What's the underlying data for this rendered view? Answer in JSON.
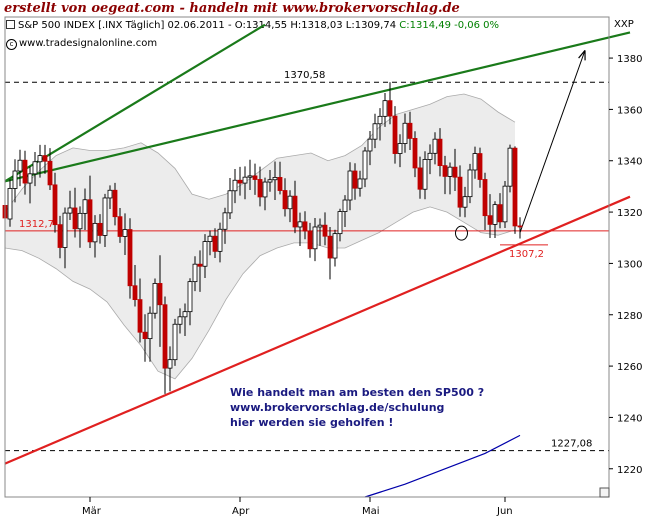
{
  "header": {
    "banner": "erstellt von oegeat.com - handeln mit www.brokervorschlag.de",
    "info": "S&P 500 INDEX [.INX Täglich] 02.06.2011 - O:1314,55 H:1318,03 L:1309,74",
    "info_close": "C:1314,49 -0,06 0%",
    "source": "www.tradesignalonline.com",
    "axis_code": "XXP"
  },
  "colors": {
    "up": "#ffffff",
    "down": "#c00000",
    "support": "#e02020",
    "resistance": "#1a7a1a",
    "bands": "#aaaaaa",
    "ma": "#0000aa",
    "annotation": "#1a1a80"
  },
  "chart_data": {
    "type": "candlestick",
    "title": "",
    "ylim": [
      1209,
      1396
    ],
    "grid": false,
    "y_ticks": [
      1220,
      1240,
      1260,
      1280,
      1300,
      1320,
      1340,
      1360,
      1380
    ],
    "x_ticks": [
      "Mär",
      "Apr",
      "Mai",
      "Jun"
    ],
    "levels": [
      {
        "label": "1370,58",
        "value": 1370.58,
        "style": "dashed"
      },
      {
        "label": "1227,08",
        "value": 1227.08,
        "style": "dashed"
      },
      {
        "label": "1312,7",
        "value": 1312.7,
        "style": "solid"
      },
      {
        "label": "1307,2",
        "value": 1307.2,
        "style": "solid"
      }
    ],
    "trendlines": [
      {
        "name": "support",
        "from": [
          0,
          1222
        ],
        "to": [
          125,
          1326
        ]
      },
      {
        "name": "resistance",
        "from": [
          0,
          1332
        ],
        "to": [
          125,
          1390
        ]
      },
      {
        "name": "resistance-steep",
        "from": [
          0,
          1332
        ],
        "to": [
          52,
          1393
        ]
      },
      {
        "name": "target-arrow",
        "from": [
          103,
          1312
        ],
        "to": [
          116,
          1383
        ]
      }
    ],
    "moving_average": [
      {
        "i": 72,
        "v": 1209
      },
      {
        "i": 80,
        "v": 1214
      },
      {
        "i": 88,
        "v": 1220
      },
      {
        "i": 96,
        "v": 1226
      },
      {
        "i": 103,
        "v": 1233
      }
    ],
    "band_upper": [
      1320,
      1329,
      1336,
      1342,
      1345,
      1344,
      1344,
      1345,
      1347,
      1343,
      1337,
      1327,
      1325,
      1327,
      1331,
      1336,
      1341,
      1342,
      1343,
      1340,
      1342,
      1346,
      1353,
      1358,
      1360,
      1362,
      1365,
      1366,
      1364,
      1359,
      1355
    ],
    "band_lower": [
      1306,
      1305,
      1302,
      1298,
      1293,
      1290,
      1285,
      1276,
      1268,
      1258,
      1255,
      1263,
      1274,
      1286,
      1296,
      1303,
      1306,
      1308,
      1308,
      1306,
      1306,
      1309,
      1312,
      1316,
      1320,
      1322,
      1320,
      1316,
      1312,
      1311,
      1313
    ],
    "candles": [
      {
        "o": 1322.6,
        "h": 1329.2,
        "l": 1314.7,
        "c": 1317.7
      },
      {
        "o": 1317.3,
        "h": 1332.7,
        "l": 1314.3,
        "c": 1329.2
      },
      {
        "o": 1329.2,
        "h": 1340.6,
        "l": 1323.8,
        "c": 1336.0
      },
      {
        "o": 1336.0,
        "h": 1344.3,
        "l": 1330.1,
        "c": 1340.2
      },
      {
        "o": 1340.2,
        "h": 1343.9,
        "l": 1326.8,
        "c": 1331.3
      },
      {
        "o": 1331.3,
        "h": 1337.8,
        "l": 1323.4,
        "c": 1334.9
      },
      {
        "o": 1334.9,
        "h": 1343.4,
        "l": 1330.1,
        "c": 1339.6
      },
      {
        "o": 1339.6,
        "h": 1346.2,
        "l": 1333.4,
        "c": 1342.0
      },
      {
        "o": 1342.0,
        "h": 1346.2,
        "l": 1334.9,
        "c": 1339.8
      },
      {
        "o": 1339.8,
        "h": 1344.9,
        "l": 1328.6,
        "c": 1330.6
      },
      {
        "o": 1330.6,
        "h": 1335.3,
        "l": 1312.0,
        "c": 1315.1
      },
      {
        "o": 1315.1,
        "h": 1318.5,
        "l": 1302.0,
        "c": 1306.2
      },
      {
        "o": 1306.2,
        "h": 1321.8,
        "l": 1298.1,
        "c": 1319.6
      },
      {
        "o": 1319.6,
        "h": 1328.3,
        "l": 1316.9,
        "c": 1321.6
      },
      {
        "o": 1321.6,
        "h": 1329.5,
        "l": 1310.1,
        "c": 1313.5
      },
      {
        "o": 1313.5,
        "h": 1322.2,
        "l": 1306.1,
        "c": 1319.5
      },
      {
        "o": 1319.5,
        "h": 1329.2,
        "l": 1313.0,
        "c": 1324.8
      },
      {
        "o": 1324.8,
        "h": 1334.2,
        "l": 1306.0,
        "c": 1308.4
      },
      {
        "o": 1308.4,
        "h": 1318.8,
        "l": 1302.3,
        "c": 1315.6
      },
      {
        "o": 1315.6,
        "h": 1319.2,
        "l": 1307.7,
        "c": 1310.9
      },
      {
        "o": 1310.9,
        "h": 1327.1,
        "l": 1306.4,
        "c": 1325.5
      },
      {
        "o": 1325.5,
        "h": 1330.4,
        "l": 1321.2,
        "c": 1328.5
      },
      {
        "o": 1328.5,
        "h": 1331.4,
        "l": 1314.8,
        "c": 1318.2
      },
      {
        "o": 1318.2,
        "h": 1321.6,
        "l": 1308.0,
        "c": 1310.5
      },
      {
        "o": 1310.5,
        "h": 1319.5,
        "l": 1303.3,
        "c": 1313.2
      },
      {
        "o": 1313.2,
        "h": 1317.6,
        "l": 1286.3,
        "c": 1291.3
      },
      {
        "o": 1291.3,
        "h": 1299.4,
        "l": 1283.2,
        "c": 1285.9
      },
      {
        "o": 1285.9,
        "h": 1294.1,
        "l": 1269.2,
        "c": 1273.2
      },
      {
        "o": 1273.2,
        "h": 1280.2,
        "l": 1261.7,
        "c": 1270.7
      },
      {
        "o": 1270.7,
        "h": 1283.2,
        "l": 1261.7,
        "c": 1280.6
      },
      {
        "o": 1280.6,
        "h": 1294.1,
        "l": 1278.5,
        "c": 1292.2
      },
      {
        "o": 1292.2,
        "h": 1303.2,
        "l": 1267.5,
        "c": 1283.9
      },
      {
        "o": 1283.9,
        "h": 1287.1,
        "l": 1249.2,
        "c": 1259.2
      },
      {
        "o": 1259.2,
        "h": 1267.7,
        "l": 1250.2,
        "c": 1262.5
      },
      {
        "o": 1262.5,
        "h": 1278.4,
        "l": 1260.1,
        "c": 1276.3
      },
      {
        "o": 1276.3,
        "h": 1282.5,
        "l": 1272.7,
        "c": 1279.2
      },
      {
        "o": 1279.2,
        "h": 1284.4,
        "l": 1271.7,
        "c": 1281.2
      },
      {
        "o": 1281.2,
        "h": 1294.2,
        "l": 1275.9,
        "c": 1292.9
      },
      {
        "o": 1292.9,
        "h": 1302.8,
        "l": 1289.2,
        "c": 1299.7
      },
      {
        "o": 1299.7,
        "h": 1305.1,
        "l": 1288.9,
        "c": 1298.9
      },
      {
        "o": 1298.9,
        "h": 1311.4,
        "l": 1294.3,
        "c": 1308.5
      },
      {
        "o": 1308.5,
        "h": 1312.8,
        "l": 1303.2,
        "c": 1310.6
      },
      {
        "o": 1310.6,
        "h": 1313.7,
        "l": 1302.1,
        "c": 1304.7
      },
      {
        "o": 1304.7,
        "h": 1315.9,
        "l": 1300.4,
        "c": 1313.3
      },
      {
        "o": 1313.3,
        "h": 1321.7,
        "l": 1307.6,
        "c": 1319.7
      },
      {
        "o": 1319.7,
        "h": 1333.3,
        "l": 1317.3,
        "c": 1328.3
      },
      {
        "o": 1328.3,
        "h": 1336.8,
        "l": 1323.5,
        "c": 1332.4
      },
      {
        "o": 1332.4,
        "h": 1337.6,
        "l": 1326.4,
        "c": 1331.3
      },
      {
        "o": 1331.3,
        "h": 1337.8,
        "l": 1325.0,
        "c": 1333.6
      },
      {
        "o": 1333.6,
        "h": 1340.4,
        "l": 1328.6,
        "c": 1334.1
      },
      {
        "o": 1334.1,
        "h": 1338.9,
        "l": 1326.7,
        "c": 1332.7
      },
      {
        "o": 1332.7,
        "h": 1337.7,
        "l": 1322.2,
        "c": 1325.9
      },
      {
        "o": 1325.9,
        "h": 1333.4,
        "l": 1320.7,
        "c": 1331.7
      },
      {
        "o": 1331.7,
        "h": 1336.4,
        "l": 1327.9,
        "c": 1332.6
      },
      {
        "o": 1332.6,
        "h": 1339.7,
        "l": 1324.7,
        "c": 1333.5
      },
      {
        "o": 1333.5,
        "h": 1339.6,
        "l": 1326.9,
        "c": 1328.4
      },
      {
        "o": 1328.4,
        "h": 1333.2,
        "l": 1318.3,
        "c": 1321.3
      },
      {
        "o": 1321.3,
        "h": 1328.5,
        "l": 1316.1,
        "c": 1326.2
      },
      {
        "o": 1326.2,
        "h": 1332.2,
        "l": 1311.8,
        "c": 1314.2
      },
      {
        "o": 1314.2,
        "h": 1319.8,
        "l": 1306.8,
        "c": 1316.2
      },
      {
        "o": 1316.2,
        "h": 1320.3,
        "l": 1309.4,
        "c": 1312.6
      },
      {
        "o": 1312.6,
        "h": 1315.8,
        "l": 1302.2,
        "c": 1305.7
      },
      {
        "o": 1305.7,
        "h": 1317.7,
        "l": 1300.9,
        "c": 1314.2
      },
      {
        "o": 1314.2,
        "h": 1317.5,
        "l": 1306.9,
        "c": 1314.9
      },
      {
        "o": 1314.9,
        "h": 1319.9,
        "l": 1307.1,
        "c": 1310.6
      },
      {
        "o": 1310.6,
        "h": 1314.2,
        "l": 1293.8,
        "c": 1302.1
      },
      {
        "o": 1302.1,
        "h": 1313.1,
        "l": 1298.8,
        "c": 1311.6
      },
      {
        "o": 1311.6,
        "h": 1321.3,
        "l": 1308.6,
        "c": 1320.2
      },
      {
        "o": 1320.2,
        "h": 1326.6,
        "l": 1314.2,
        "c": 1324.7
      },
      {
        "o": 1324.7,
        "h": 1339.4,
        "l": 1320.7,
        "c": 1336.0
      },
      {
        "o": 1336.0,
        "h": 1339.0,
        "l": 1324.8,
        "c": 1329.3
      },
      {
        "o": 1329.3,
        "h": 1336.1,
        "l": 1326.0,
        "c": 1332.9
      },
      {
        "o": 1332.9,
        "h": 1345.3,
        "l": 1329.7,
        "c": 1343.8
      },
      {
        "o": 1343.8,
        "h": 1351.6,
        "l": 1338.3,
        "c": 1348.4
      },
      {
        "o": 1348.4,
        "h": 1358.3,
        "l": 1344.9,
        "c": 1354.4
      },
      {
        "o": 1354.4,
        "h": 1360.5,
        "l": 1347.9,
        "c": 1357.3
      },
      {
        "o": 1357.3,
        "h": 1366.4,
        "l": 1353.2,
        "c": 1363.4
      },
      {
        "o": 1363.4,
        "h": 1370.6,
        "l": 1354.2,
        "c": 1357.4
      },
      {
        "o": 1357.4,
        "h": 1361.3,
        "l": 1338.9,
        "c": 1342.8
      },
      {
        "o": 1342.8,
        "h": 1350.3,
        "l": 1337.5,
        "c": 1346.7
      },
      {
        "o": 1346.7,
        "h": 1358.4,
        "l": 1343.1,
        "c": 1354.6
      },
      {
        "o": 1354.6,
        "h": 1359.1,
        "l": 1344.2,
        "c": 1348.7
      },
      {
        "o": 1348.7,
        "h": 1351.5,
        "l": 1333.6,
        "c": 1337.2
      },
      {
        "o": 1337.2,
        "h": 1341.6,
        "l": 1325.2,
        "c": 1328.9
      },
      {
        "o": 1328.9,
        "h": 1343.7,
        "l": 1325.0,
        "c": 1340.5
      },
      {
        "o": 1340.5,
        "h": 1346.4,
        "l": 1334.8,
        "c": 1342.9
      },
      {
        "o": 1342.9,
        "h": 1351.1,
        "l": 1338.6,
        "c": 1348.4
      },
      {
        "o": 1348.4,
        "h": 1352.7,
        "l": 1333.9,
        "c": 1338.1
      },
      {
        "o": 1338.1,
        "h": 1341.9,
        "l": 1327.0,
        "c": 1333.9
      },
      {
        "o": 1333.9,
        "h": 1339.3,
        "l": 1326.9,
        "c": 1337.5
      },
      {
        "o": 1337.5,
        "h": 1344.6,
        "l": 1328.2,
        "c": 1333.6
      },
      {
        "o": 1333.6,
        "h": 1338.2,
        "l": 1318.2,
        "c": 1321.9
      },
      {
        "o": 1321.9,
        "h": 1329.8,
        "l": 1318.0,
        "c": 1326.0
      },
      {
        "o": 1326.0,
        "h": 1338.8,
        "l": 1323.5,
        "c": 1336.4
      },
      {
        "o": 1336.4,
        "h": 1345.5,
        "l": 1333.0,
        "c": 1342.8
      },
      {
        "o": 1342.8,
        "h": 1345.1,
        "l": 1329.5,
        "c": 1332.7
      },
      {
        "o": 1332.7,
        "h": 1335.3,
        "l": 1313.0,
        "c": 1318.6
      },
      {
        "o": 1318.6,
        "h": 1327.0,
        "l": 1309.9,
        "c": 1315.2
      },
      {
        "o": 1315.2,
        "h": 1324.2,
        "l": 1309.9,
        "c": 1322.9
      },
      {
        "o": 1322.9,
        "h": 1327.4,
        "l": 1313.7,
        "c": 1316.2
      },
      {
        "o": 1316.2,
        "h": 1332.1,
        "l": 1313.8,
        "c": 1330.1
      },
      {
        "o": 1330.1,
        "h": 1346.3,
        "l": 1327.7,
        "c": 1344.9
      },
      {
        "o": 1344.9,
        "h": 1345.6,
        "l": 1311.5,
        "c": 1314.6
      },
      {
        "o": 1314.6,
        "h": 1318.0,
        "l": 1309.7,
        "c": 1314.5
      }
    ],
    "annotations": [
      "Wie handelt man am besten den SP500 ?",
      "www.brokervorschlag.de/schulung",
      "hier werden sie geholfen !"
    ]
  }
}
